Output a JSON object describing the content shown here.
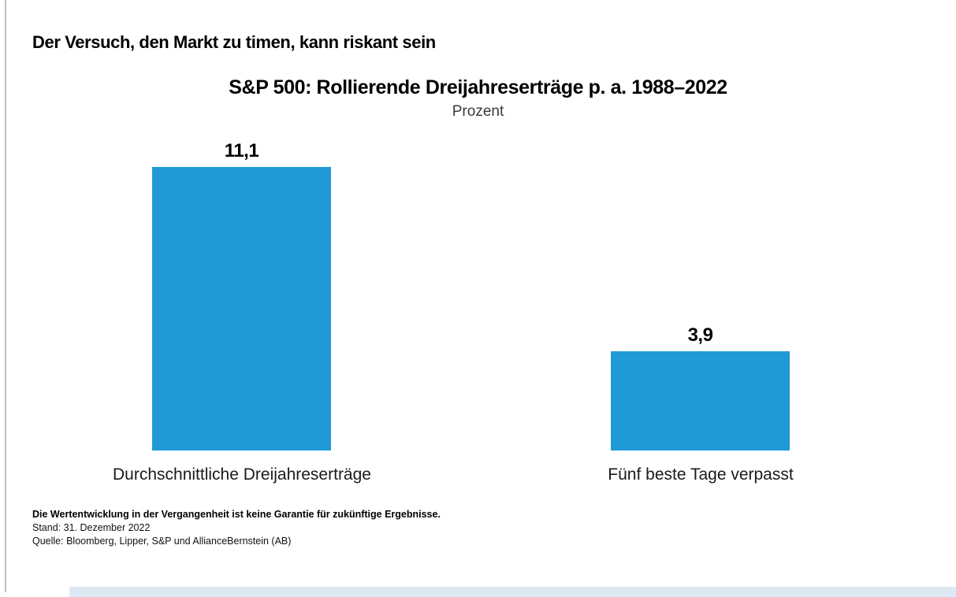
{
  "slide": {
    "title": "Der Versuch, den Markt zu timen, kann riskant sein"
  },
  "chart_data": {
    "type": "bar",
    "title": "S&P 500: Rollierende Dreijahreserträge p. a. 1988–2022",
    "subtitle": "Prozent",
    "categories": [
      "Durchschnittliche Dreijahreserträge",
      "Fünf beste Tage verpasst"
    ],
    "values": [
      11.1,
      3.9
    ],
    "value_labels": [
      "11,1",
      "3,9"
    ],
    "ylim": [
      0,
      12.4
    ],
    "grid": false,
    "legend": false,
    "bar_color": "#1F9AD6"
  },
  "footnotes": {
    "disclaimer": "Die Wertentwicklung in der Vergangenheit ist keine Garantie für zukünftige Ergebnisse.",
    "as_of": "Stand: 31. Dezember 2022",
    "source": "Quelle: Bloomberg, Lipper, S&P und AllianceBernstein (AB)"
  },
  "colors": {
    "bar": "#1F9AD6",
    "left_rule": "#BBBEC1",
    "bottom_band": "#DCE9F4",
    "text": "#000000"
  }
}
